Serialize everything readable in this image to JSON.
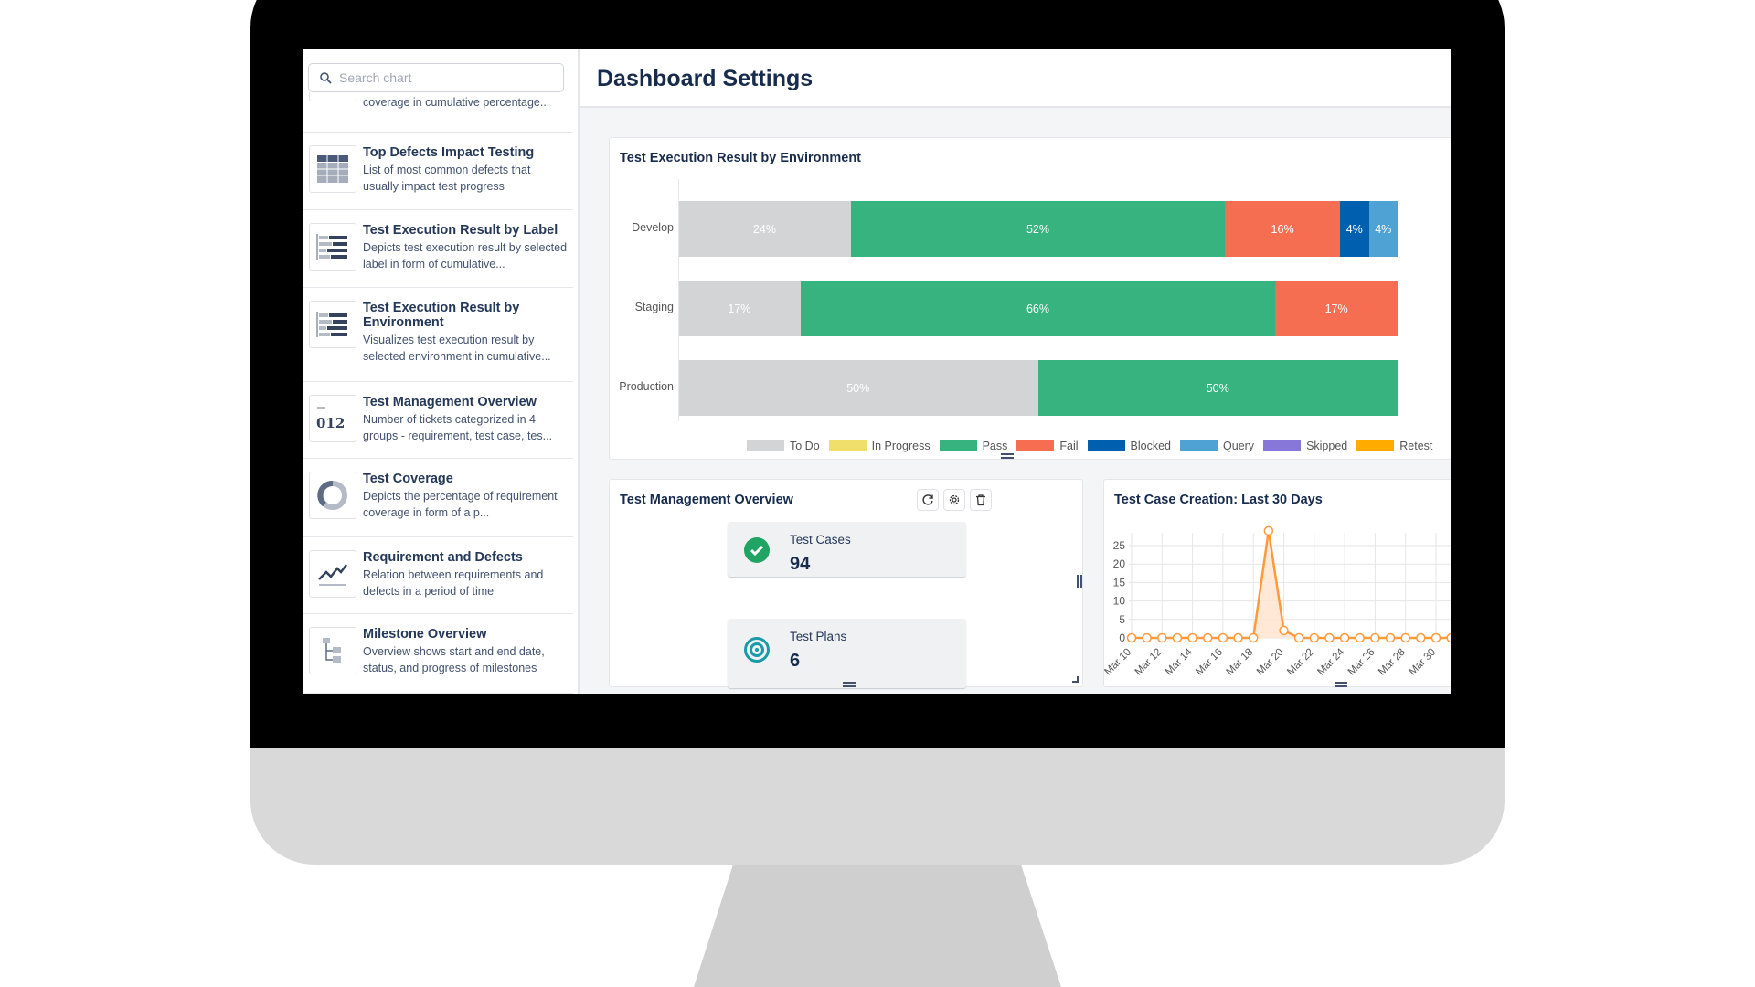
{
  "sidebar": {
    "search_placeholder": "Search chart",
    "partial_item_desc": "coverage in cumulative percentage...",
    "items": [
      {
        "title": "Top Defects Impact Testing",
        "desc": "List of most common defects that usually impact test progress",
        "icon": "table-icon"
      },
      {
        "title": "Test Execution Result by Label",
        "desc": "Depicts test execution result by selected label in form of cumulative...",
        "icon": "stacked-bar-icon"
      },
      {
        "title": "Test Execution Result by Environment",
        "desc": "Visualizes test execution result by selected environment in cumulative...",
        "icon": "stacked-bar-icon"
      },
      {
        "title": "Test Management Overview",
        "desc": "Number of tickets categorized in 4 groups - requirement, test case, tes...",
        "icon": "number-icon",
        "icon_text": "012"
      },
      {
        "title": "Test Coverage",
        "desc": "Depicts the percentage of requirement coverage in form of a p...",
        "icon": "donut-icon"
      },
      {
        "title": "Requirement and Defects",
        "desc": "Relation between requirements and defects in a period of time",
        "icon": "line-chart-icon"
      },
      {
        "title": "Milestone Overview",
        "desc": "Overview shows start and end date, status, and progress of milestones",
        "icon": "tree-icon"
      }
    ]
  },
  "header": {
    "title": "Dashboard Settings"
  },
  "colors": {
    "todo": "#d3d4d6",
    "in_progress": "#f0df6a",
    "pass": "#36b37e",
    "fail": "#f56e51",
    "blocked": "#0060b0",
    "query": "#4fa3d4",
    "skipped": "#8777d9",
    "retest": "#ffab00",
    "line": "#ff9a3c"
  },
  "management": {
    "title": "Test Management Overview",
    "stats": [
      {
        "label": "Test Cases",
        "value": "94",
        "icon": "check-circle-icon",
        "color": "#1fa463"
      },
      {
        "label": "Test Plans",
        "value": "6",
        "icon": "target-icon",
        "color": "#1a9ba8"
      }
    ]
  },
  "chart_data": [
    {
      "type": "bar",
      "orientation": "horizontal-stacked-percent",
      "title": "Test Execution Result by Environment",
      "categories": [
        "Develop",
        "Staging",
        "Production"
      ],
      "legend": [
        "To Do",
        "In Progress",
        "Pass",
        "Fail",
        "Blocked",
        "Query",
        "Skipped",
        "Retest"
      ],
      "legend_placement": "bottom",
      "series": [
        {
          "name": "To Do",
          "values": [
            24,
            17,
            50
          ]
        },
        {
          "name": "In Progress",
          "values": [
            0,
            0,
            0
          ]
        },
        {
          "name": "Pass",
          "values": [
            52,
            66,
            50
          ]
        },
        {
          "name": "Fail",
          "values": [
            16,
            17,
            0
          ]
        },
        {
          "name": "Blocked",
          "values": [
            4,
            0,
            0
          ]
        },
        {
          "name": "Query",
          "values": [
            4,
            0,
            0
          ]
        },
        {
          "name": "Skipped",
          "values": [
            0,
            0,
            0
          ]
        },
        {
          "name": "Retest",
          "values": [
            0,
            0,
            0
          ]
        }
      ]
    },
    {
      "type": "area",
      "title": "Test Case Creation: Last 30 Days",
      "x": [
        "Mar 10",
        "Mar 11",
        "Mar 12",
        "Mar 13",
        "Mar 14",
        "Mar 15",
        "Mar 16",
        "Mar 17",
        "Mar 18",
        "Mar 19",
        "Mar 20",
        "Mar 21",
        "Mar 22",
        "Mar 23",
        "Mar 24",
        "Mar 25",
        "Mar 26",
        "Mar 27",
        "Mar 28",
        "Mar 29",
        "Mar 30",
        "Mar 31"
      ],
      "x_tick_labels": [
        "Mar 10",
        "Mar 12",
        "Mar 14",
        "Mar 16",
        "Mar 18",
        "Mar 20",
        "Mar 22",
        "Mar 24",
        "Mar 26",
        "Mar 28",
        "Mar 30"
      ],
      "y": [
        0,
        0,
        0,
        0,
        0,
        0,
        0,
        0,
        0,
        29,
        2,
        0,
        0,
        0,
        0,
        0,
        0,
        0,
        0,
        0,
        0,
        0
      ],
      "y_ticks": [
        0,
        5,
        10,
        15,
        20,
        25
      ],
      "ylim": [
        0,
        30
      ],
      "grid": true
    }
  ]
}
